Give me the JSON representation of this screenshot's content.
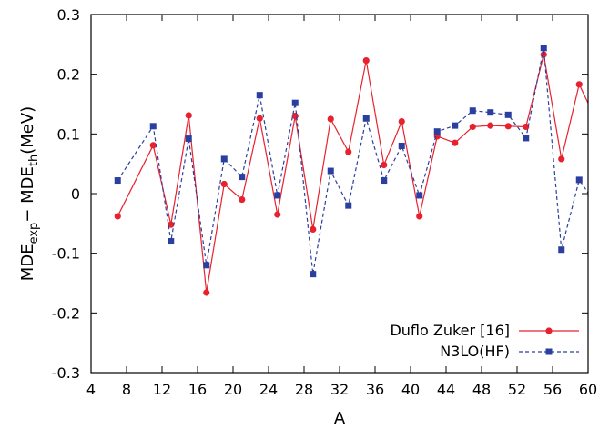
{
  "chart_data": {
    "type": "line",
    "xlabel": "A",
    "ylabel": {
      "base1": "MDE",
      "sub1": "exp",
      "middle": "− MDE",
      "sub2": "th",
      "unit": "(MeV)"
    },
    "xlim": [
      4,
      60
    ],
    "ylim": [
      -0.3,
      0.3
    ],
    "xticks": [
      4,
      8,
      12,
      16,
      20,
      24,
      28,
      32,
      36,
      40,
      44,
      48,
      52,
      56,
      60
    ],
    "yticks": [
      -0.3,
      -0.2,
      -0.1,
      0,
      0.1,
      0.2,
      0.3
    ],
    "ytick_labels": [
      "-0.3",
      "-0.2",
      "-0.1",
      "0",
      "0.1",
      "0.2",
      "0.3"
    ],
    "legend_position": "bottom-right",
    "series": [
      {
        "name": "Duflo Zuker [16]",
        "color": "#e8212e",
        "marker": "circle",
        "line": "solid",
        "points": [
          [
            7,
            -0.038
          ],
          [
            11,
            0.081
          ],
          [
            13,
            -0.052
          ],
          [
            15,
            0.131
          ],
          [
            17,
            -0.166
          ],
          [
            19,
            0.016
          ],
          [
            21,
            -0.01
          ],
          [
            23,
            0.126
          ],
          [
            25,
            -0.035
          ],
          [
            27,
            0.13
          ],
          [
            29,
            -0.06
          ],
          [
            31,
            0.125
          ],
          [
            33,
            0.07
          ],
          [
            35,
            0.223
          ],
          [
            37,
            0.048
          ],
          [
            39,
            0.121
          ],
          [
            41,
            -0.038
          ],
          [
            43,
            0.096
          ],
          [
            45,
            0.085
          ],
          [
            47,
            0.112
          ],
          [
            49,
            0.114
          ],
          [
            51,
            0.113
          ],
          [
            53,
            0.112
          ],
          [
            55,
            0.233
          ],
          [
            57,
            0.058
          ],
          [
            59,
            0.183
          ],
          [
            61,
            0.12
          ]
        ]
      },
      {
        "name": "N3LO(HF)",
        "color": "#2a3f9e",
        "marker": "square",
        "line": "dashed",
        "points": [
          [
            7,
            0.022
          ],
          [
            11,
            0.113
          ],
          [
            13,
            -0.08
          ],
          [
            15,
            0.092
          ],
          [
            17,
            -0.12
          ],
          [
            19,
            0.058
          ],
          [
            21,
            0.028
          ],
          [
            23,
            0.165
          ],
          [
            25,
            -0.003
          ],
          [
            27,
            0.152
          ],
          [
            29,
            -0.135
          ],
          [
            31,
            0.038
          ],
          [
            33,
            -0.02
          ],
          [
            35,
            0.126
          ],
          [
            37,
            0.022
          ],
          [
            39,
            0.08
          ],
          [
            41,
            -0.003
          ],
          [
            43,
            0.104
          ],
          [
            45,
            0.114
          ],
          [
            47,
            0.139
          ],
          [
            49,
            0.136
          ],
          [
            51,
            0.132
          ],
          [
            53,
            0.093
          ],
          [
            55,
            0.244
          ],
          [
            57,
            -0.094
          ],
          [
            59,
            0.023
          ],
          [
            61,
            -0.02
          ]
        ]
      }
    ]
  }
}
